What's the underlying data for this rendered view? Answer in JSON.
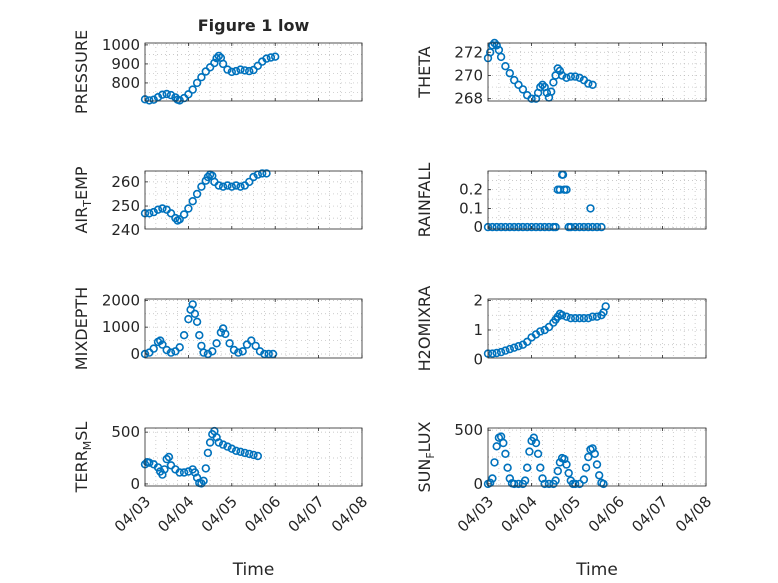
{
  "figure": {
    "title": "Figure 1 low",
    "xlabel": "Time",
    "marker_color": "#0072BD",
    "xticks": [
      "04/03",
      "04/04",
      "04/05",
      "04/06",
      "04/07",
      "04/08"
    ]
  },
  "chart_data": [
    {
      "type": "scatter",
      "name": "PRESSURE",
      "ylabel": [
        "PRESSURE"
      ],
      "ylim": [
        705,
        1010
      ],
      "yticks": [
        800,
        900,
        1000
      ],
      "xlim": [
        3,
        8
      ],
      "grid": true,
      "xtick_labels": false,
      "points": [
        [
          3.0,
          714
        ],
        [
          3.1,
          708
        ],
        [
          3.2,
          712
        ],
        [
          3.3,
          725
        ],
        [
          3.4,
          738
        ],
        [
          3.5,
          742
        ],
        [
          3.6,
          736
        ],
        [
          3.7,
          724
        ],
        [
          3.75,
          712
        ],
        [
          3.8,
          708
        ],
        [
          3.9,
          720
        ],
        [
          4.0,
          740
        ],
        [
          4.1,
          765
        ],
        [
          4.2,
          800
        ],
        [
          4.3,
          830
        ],
        [
          4.4,
          860
        ],
        [
          4.5,
          882
        ],
        [
          4.6,
          905
        ],
        [
          4.65,
          930
        ],
        [
          4.7,
          942
        ],
        [
          4.75,
          932
        ],
        [
          4.8,
          900
        ],
        [
          4.9,
          870
        ],
        [
          5.0,
          858
        ],
        [
          5.1,
          862
        ],
        [
          5.2,
          870
        ],
        [
          5.3,
          866
        ],
        [
          5.4,
          862
        ],
        [
          5.5,
          868
        ],
        [
          5.6,
          890
        ],
        [
          5.7,
          912
        ],
        [
          5.8,
          928
        ],
        [
          5.9,
          934
        ],
        [
          6.0,
          938
        ]
      ]
    },
    {
      "type": "scatter",
      "name": "THETA",
      "ylabel": [
        "THETA"
      ],
      "ylim": [
        267.8,
        272.8
      ],
      "yticks": [
        268,
        270,
        272
      ],
      "xlim": [
        3,
        8
      ],
      "grid": true,
      "xtick_labels": false,
      "points": [
        [
          3.0,
          271.5
        ],
        [
          3.05,
          272.0
        ],
        [
          3.1,
          272.6
        ],
        [
          3.15,
          272.8
        ],
        [
          3.2,
          272.6
        ],
        [
          3.25,
          272.2
        ],
        [
          3.3,
          271.6
        ],
        [
          3.4,
          270.8
        ],
        [
          3.5,
          270.2
        ],
        [
          3.6,
          269.6
        ],
        [
          3.7,
          269.2
        ],
        [
          3.8,
          268.8
        ],
        [
          3.9,
          268.3
        ],
        [
          4.0,
          268.0
        ],
        [
          4.1,
          268.0
        ],
        [
          4.15,
          268.5
        ],
        [
          4.2,
          269.0
        ],
        [
          4.25,
          269.2
        ],
        [
          4.3,
          269.0
        ],
        [
          4.35,
          268.5
        ],
        [
          4.4,
          268.1
        ],
        [
          4.45,
          268.6
        ],
        [
          4.5,
          269.4
        ],
        [
          4.55,
          270.0
        ],
        [
          4.6,
          270.6
        ],
        [
          4.65,
          270.4
        ],
        [
          4.7,
          270.0
        ],
        [
          4.8,
          269.8
        ],
        [
          4.9,
          269.9
        ],
        [
          5.0,
          269.9
        ],
        [
          5.1,
          269.8
        ],
        [
          5.2,
          269.6
        ],
        [
          5.3,
          269.3
        ],
        [
          5.4,
          269.2
        ]
      ]
    },
    {
      "type": "scatter",
      "name": "AIR_TEMP",
      "ylabel": [
        "AIR",
        "T",
        "EMP"
      ],
      "ylim": [
        240.5,
        264.5
      ],
      "yticks": [
        240,
        250,
        260
      ],
      "xlim": [
        3,
        8
      ],
      "grid": true,
      "xtick_labels": false,
      "points": [
        [
          3.0,
          247
        ],
        [
          3.1,
          247
        ],
        [
          3.2,
          247.5
        ],
        [
          3.3,
          248.5
        ],
        [
          3.4,
          249
        ],
        [
          3.5,
          248.5
        ],
        [
          3.6,
          247
        ],
        [
          3.7,
          245
        ],
        [
          3.75,
          244
        ],
        [
          3.8,
          244.5
        ],
        [
          3.9,
          246.5
        ],
        [
          4.0,
          249
        ],
        [
          4.1,
          252
        ],
        [
          4.2,
          255
        ],
        [
          4.3,
          258
        ],
        [
          4.4,
          260.5
        ],
        [
          4.45,
          262
        ],
        [
          4.5,
          263
        ],
        [
          4.55,
          262.5
        ],
        [
          4.6,
          260
        ],
        [
          4.7,
          258.5
        ],
        [
          4.8,
          258
        ],
        [
          4.9,
          258.5
        ],
        [
          5.0,
          258
        ],
        [
          5.1,
          258.5
        ],
        [
          5.2,
          258
        ],
        [
          5.3,
          258.5
        ],
        [
          5.4,
          260
        ],
        [
          5.5,
          262
        ],
        [
          5.6,
          263
        ],
        [
          5.7,
          263.5
        ],
        [
          5.8,
          263.5
        ]
      ]
    },
    {
      "type": "scatter",
      "name": "RAINFALL",
      "ylabel": [
        "RAINFALL"
      ],
      "ylim": [
        -0.01,
        0.3
      ],
      "yticks": [
        0,
        0.1,
        0.2
      ],
      "xlim": [
        3,
        8
      ],
      "grid": true,
      "xtick_labels": false,
      "points": [
        [
          3.0,
          0
        ],
        [
          3.1,
          0
        ],
        [
          3.2,
          0
        ],
        [
          3.3,
          0
        ],
        [
          3.4,
          0
        ],
        [
          3.5,
          0
        ],
        [
          3.6,
          0
        ],
        [
          3.7,
          0
        ],
        [
          3.8,
          0
        ],
        [
          3.9,
          0
        ],
        [
          4.0,
          0
        ],
        [
          4.1,
          0
        ],
        [
          4.2,
          0
        ],
        [
          4.3,
          0
        ],
        [
          4.4,
          0
        ],
        [
          4.5,
          0
        ],
        [
          4.55,
          0
        ],
        [
          4.6,
          0.2
        ],
        [
          4.65,
          0.2
        ],
        [
          4.7,
          0.28
        ],
        [
          4.72,
          0.28
        ],
        [
          4.75,
          0.2
        ],
        [
          4.8,
          0.2
        ],
        [
          4.85,
          0
        ],
        [
          4.9,
          0
        ],
        [
          5.0,
          0
        ],
        [
          5.1,
          0
        ],
        [
          5.2,
          0
        ],
        [
          5.3,
          0
        ],
        [
          5.35,
          0.1
        ],
        [
          5.4,
          0
        ],
        [
          5.5,
          0
        ],
        [
          5.6,
          0
        ]
      ]
    },
    {
      "type": "scatter",
      "name": "MIXDEPTH",
      "ylabel": [
        "MIXDEPTH"
      ],
      "ylim": [
        -150,
        2050
      ],
      "yticks": [
        0,
        1000,
        2000
      ],
      "xlim": [
        3,
        8
      ],
      "grid": true,
      "xtick_labels": false,
      "points": [
        [
          3.0,
          0
        ],
        [
          3.1,
          50
        ],
        [
          3.2,
          200
        ],
        [
          3.3,
          450
        ],
        [
          3.35,
          500
        ],
        [
          3.4,
          350
        ],
        [
          3.5,
          150
        ],
        [
          3.6,
          50
        ],
        [
          3.7,
          100
        ],
        [
          3.8,
          250
        ],
        [
          3.9,
          700
        ],
        [
          4.0,
          1300
        ],
        [
          4.05,
          1650
        ],
        [
          4.1,
          1850
        ],
        [
          4.15,
          1500
        ],
        [
          4.2,
          1200
        ],
        [
          4.25,
          700
        ],
        [
          4.3,
          300
        ],
        [
          4.35,
          50
        ],
        [
          4.45,
          0
        ],
        [
          4.55,
          100
        ],
        [
          4.65,
          400
        ],
        [
          4.75,
          800
        ],
        [
          4.8,
          950
        ],
        [
          4.85,
          750
        ],
        [
          4.95,
          400
        ],
        [
          5.05,
          150
        ],
        [
          5.15,
          50
        ],
        [
          5.25,
          100
        ],
        [
          5.35,
          350
        ],
        [
          5.45,
          500
        ],
        [
          5.55,
          300
        ],
        [
          5.65,
          100
        ],
        [
          5.75,
          0
        ],
        [
          5.85,
          0
        ],
        [
          5.95,
          0
        ]
      ]
    },
    {
      "type": "scatter",
      "name": "H2OMIXRA",
      "ylabel": [
        "H2OMIXRA"
      ],
      "ylim": [
        0.05,
        2.05
      ],
      "yticks": [
        0,
        1,
        2
      ],
      "xlim": [
        3,
        8
      ],
      "grid": true,
      "xtick_labels": false,
      "points": [
        [
          3.0,
          0.2
        ],
        [
          3.1,
          0.2
        ],
        [
          3.2,
          0.22
        ],
        [
          3.3,
          0.25
        ],
        [
          3.4,
          0.3
        ],
        [
          3.5,
          0.35
        ],
        [
          3.6,
          0.4
        ],
        [
          3.7,
          0.45
        ],
        [
          3.8,
          0.5
        ],
        [
          3.9,
          0.6
        ],
        [
          4.0,
          0.75
        ],
        [
          4.1,
          0.85
        ],
        [
          4.2,
          0.95
        ],
        [
          4.3,
          1.0
        ],
        [
          4.4,
          1.1
        ],
        [
          4.5,
          1.25
        ],
        [
          4.55,
          1.35
        ],
        [
          4.6,
          1.45
        ],
        [
          4.65,
          1.55
        ],
        [
          4.7,
          1.5
        ],
        [
          4.8,
          1.45
        ],
        [
          4.9,
          1.4
        ],
        [
          5.0,
          1.4
        ],
        [
          5.1,
          1.4
        ],
        [
          5.2,
          1.4
        ],
        [
          5.3,
          1.4
        ],
        [
          5.4,
          1.45
        ],
        [
          5.5,
          1.45
        ],
        [
          5.6,
          1.5
        ],
        [
          5.65,
          1.6
        ],
        [
          5.7,
          1.8
        ]
      ]
    },
    {
      "type": "scatter",
      "name": "TERR_MSL",
      "ylabel": [
        "TERR",
        "M",
        "SL"
      ],
      "ylim": [
        -20,
        540
      ],
      "yticks": [
        0,
        500
      ],
      "xlim": [
        3,
        8
      ],
      "grid": true,
      "xtick_labels": true,
      "points": [
        [
          3.0,
          190
        ],
        [
          3.05,
          210
        ],
        [
          3.1,
          205
        ],
        [
          3.2,
          190
        ],
        [
          3.3,
          160
        ],
        [
          3.35,
          120
        ],
        [
          3.4,
          90
        ],
        [
          3.45,
          140
        ],
        [
          3.5,
          240
        ],
        [
          3.55,
          260
        ],
        [
          3.6,
          180
        ],
        [
          3.7,
          140
        ],
        [
          3.8,
          110
        ],
        [
          3.9,
          110
        ],
        [
          4.0,
          120
        ],
        [
          4.1,
          140
        ],
        [
          4.15,
          110
        ],
        [
          4.2,
          60
        ],
        [
          4.25,
          10
        ],
        [
          4.3,
          5
        ],
        [
          4.35,
          30
        ],
        [
          4.4,
          150
        ],
        [
          4.45,
          300
        ],
        [
          4.5,
          400
        ],
        [
          4.55,
          480
        ],
        [
          4.6,
          510
        ],
        [
          4.65,
          450
        ],
        [
          4.7,
          400
        ],
        [
          4.8,
          380
        ],
        [
          4.9,
          360
        ],
        [
          5.0,
          340
        ],
        [
          5.1,
          320
        ],
        [
          5.2,
          310
        ],
        [
          5.3,
          300
        ],
        [
          5.4,
          290
        ],
        [
          5.5,
          280
        ],
        [
          5.6,
          270
        ]
      ]
    },
    {
      "type": "scatter",
      "name": "SUN_FLUX",
      "ylabel": [
        "SUN",
        "F",
        "LUX"
      ],
      "ylim": [
        -20,
        520
      ],
      "yticks": [
        0,
        500
      ],
      "xlim": [
        3,
        8
      ],
      "grid": true,
      "xtick_labels": true,
      "points": [
        [
          3.0,
          0
        ],
        [
          3.05,
          10
        ],
        [
          3.1,
          50
        ],
        [
          3.15,
          200
        ],
        [
          3.2,
          350
        ],
        [
          3.25,
          430
        ],
        [
          3.3,
          440
        ],
        [
          3.35,
          380
        ],
        [
          3.4,
          280
        ],
        [
          3.45,
          150
        ],
        [
          3.5,
          50
        ],
        [
          3.55,
          5
        ],
        [
          3.6,
          0
        ],
        [
          3.7,
          0
        ],
        [
          3.8,
          0
        ],
        [
          3.85,
          30
        ],
        [
          3.9,
          150
        ],
        [
          3.95,
          300
        ],
        [
          4.0,
          400
        ],
        [
          4.05,
          430
        ],
        [
          4.1,
          380
        ],
        [
          4.15,
          280
        ],
        [
          4.2,
          150
        ],
        [
          4.25,
          50
        ],
        [
          4.3,
          0
        ],
        [
          4.4,
          0
        ],
        [
          4.5,
          0
        ],
        [
          4.55,
          30
        ],
        [
          4.6,
          120
        ],
        [
          4.65,
          200
        ],
        [
          4.7,
          240
        ],
        [
          4.75,
          230
        ],
        [
          4.8,
          180
        ],
        [
          4.85,
          100
        ],
        [
          4.9,
          30
        ],
        [
          4.95,
          0
        ],
        [
          5.0,
          0
        ],
        [
          5.1,
          0
        ],
        [
          5.2,
          40
        ],
        [
          5.25,
          150
        ],
        [
          5.3,
          250
        ],
        [
          5.35,
          320
        ],
        [
          5.4,
          330
        ],
        [
          5.45,
          280
        ],
        [
          5.5,
          180
        ],
        [
          5.55,
          80
        ],
        [
          5.6,
          10
        ],
        [
          5.65,
          0
        ]
      ]
    }
  ]
}
